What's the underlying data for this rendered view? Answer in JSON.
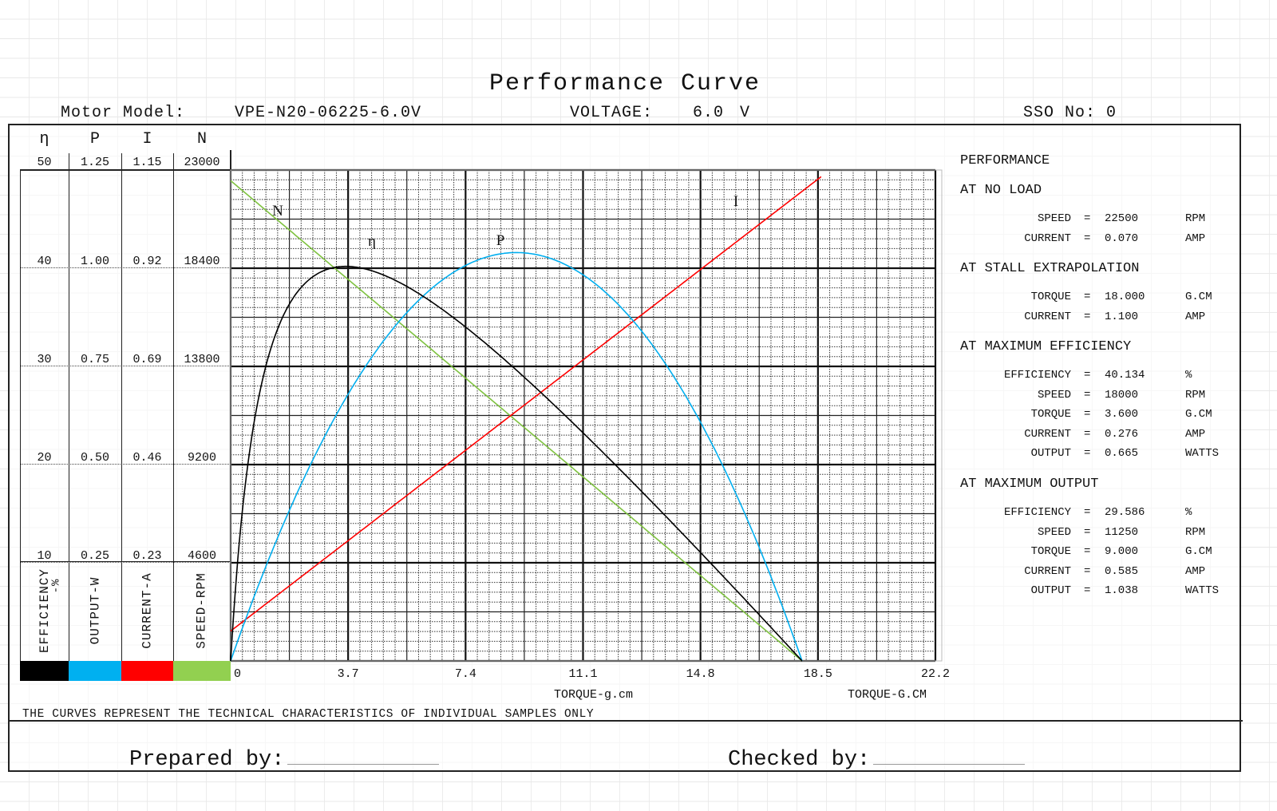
{
  "header": {
    "title": "Performance Curve",
    "motor_model_label": "Motor Model:",
    "motor_model_value": "VPE-N20-06225-6.0V",
    "voltage_label": "VOLTAGE:",
    "voltage_value": "6.0",
    "voltage_unit": "V",
    "sso_label": "SSO No:",
    "sso_value": "0"
  },
  "left_scales": {
    "symbols": [
      "η",
      "P",
      "I",
      "N"
    ],
    "rows": [
      [
        "50",
        "1.25",
        "1.15",
        "23000"
      ],
      [
        "40",
        "1.00",
        "0.92",
        "18400"
      ],
      [
        "30",
        "0.75",
        "0.69",
        "13800"
      ],
      [
        "20",
        "0.50",
        "0.46",
        "9200"
      ],
      [
        "10",
        "0.25",
        "0.23",
        "4600"
      ]
    ],
    "legend": [
      {
        "label": "EFFICIENCY",
        "sub": "-%",
        "color": "#000000"
      },
      {
        "label": "OUTPUT-W",
        "sub": "",
        "color": "#00b0f0"
      },
      {
        "label": "CURRENT-A",
        "sub": "",
        "color": "#ff0000"
      },
      {
        "label": "SPEED-RPM",
        "sub": "",
        "color": "#92d050"
      }
    ]
  },
  "chart_data": {
    "type": "line",
    "xlabel": "TORQUE-g.cm",
    "xlabel_right": "TORQUE-G.CM",
    "x_ticks": [
      "0",
      "3.7",
      "7.4",
      "11.1",
      "14.8",
      "18.5",
      "22.2"
    ],
    "xlim": [
      0,
      22.2
    ],
    "y_axes": {
      "efficiency": [
        0,
        50
      ],
      "output": [
        0,
        1.25
      ],
      "current": [
        0,
        1.15
      ],
      "speed": [
        0,
        23000
      ]
    },
    "grid": true,
    "motor": {
      "voltage": 6.0,
      "no_load_speed": 22500,
      "no_load_current": 0.07,
      "stall_torque": 18.0,
      "stall_current": 1.1
    },
    "series": [
      {
        "name": "N",
        "quantity": "speed",
        "color": "#7fc241"
      },
      {
        "name": "I",
        "quantity": "current",
        "color": "#ff0000"
      },
      {
        "name": "P",
        "quantity": "output",
        "color": "#00aeef"
      },
      {
        "name": "η",
        "quantity": "efficiency",
        "color": "#000000"
      }
    ]
  },
  "performance": {
    "title": "PERFORMANCE",
    "sections": [
      {
        "title": "AT NO LOAD",
        "rows": [
          {
            "label": "SPEED",
            "eq": "=",
            "value": "22500",
            "unit": "RPM"
          },
          {
            "label": "CURRENT",
            "eq": "=",
            "value": "0.070",
            "unit": "AMP"
          }
        ]
      },
      {
        "title": "AT STALL EXTRAPOLATION",
        "rows": [
          {
            "label": "TORQUE",
            "eq": "=",
            "value": "18.000",
            "unit": "G.CM"
          },
          {
            "label": "CURRENT",
            "eq": "=",
            "value": "1.100",
            "unit": "AMP"
          }
        ]
      },
      {
        "title": "AT MAXIMUM EFFICIENCY",
        "rows": [
          {
            "label": "EFFICIENCY",
            "eq": "=",
            "value": "40.134",
            "unit": "%"
          },
          {
            "label": "SPEED",
            "eq": "=",
            "value": "18000",
            "unit": "RPM"
          },
          {
            "label": "TORQUE",
            "eq": "=",
            "value": "3.600",
            "unit": "G.CM"
          },
          {
            "label": "CURRENT",
            "eq": "=",
            "value": "0.276",
            "unit": "AMP"
          },
          {
            "label": "OUTPUT",
            "eq": "=",
            "value": "0.665",
            "unit": "WATTS"
          }
        ]
      },
      {
        "title": "AT MAXIMUM OUTPUT",
        "rows": [
          {
            "label": "EFFICIENCY",
            "eq": "=",
            "value": "29.586",
            "unit": "%"
          },
          {
            "label": "SPEED",
            "eq": "=",
            "value": "11250",
            "unit": "RPM"
          },
          {
            "label": "TORQUE",
            "eq": "=",
            "value": "9.000",
            "unit": "G.CM"
          },
          {
            "label": "CURRENT",
            "eq": "=",
            "value": "0.585",
            "unit": "AMP"
          },
          {
            "label": "OUTPUT",
            "eq": "=",
            "value": "1.038",
            "unit": "WATTS"
          }
        ]
      }
    ]
  },
  "footer": {
    "note": "THE CURVES REPRESENT THE TECHNICAL CHARACTERISTICS OF INDIVIDUAL SAMPLES ONLY",
    "prepared_by": "Prepared by:",
    "checked_by": "Checked by:"
  }
}
